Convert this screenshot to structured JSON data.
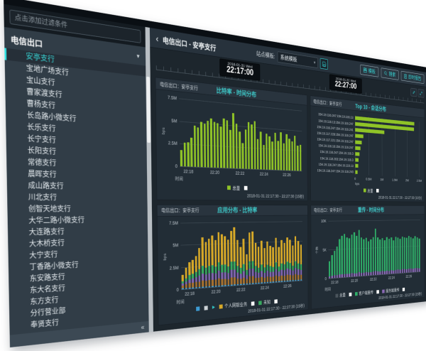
{
  "accent": "#38d2d2",
  "sidebar": {
    "filter_placeholder": "点击添加过滤条件",
    "group": "电信出口",
    "selected_index": 0,
    "items": [
      "安亭支行",
      "宝地广场支行",
      "宝山支行",
      "曹家渡支行",
      "曹杨支行",
      "长岛路小微支行",
      "长乐支行",
      "长宁支行",
      "长阳支行",
      "常德支行",
      "晨晖支行",
      "成山路支行",
      "川北支行",
      "创智天地支行",
      "大华二路小微支行",
      "大连路支行",
      "大木桥支行",
      "大宁支行",
      "丁香路小微支行",
      "东安路支行",
      "东大名支行",
      "东方支行",
      "分行营业部",
      "奉贤支行"
    ],
    "collapse_icon": "«"
  },
  "header": {
    "back": "‹",
    "breadcrumb": "电信出口 - 安亭支行",
    "template_label": "站点模板:",
    "template_value": "系统模板",
    "caret": "▾",
    "buttons": [
      {
        "label": "模板"
      },
      {
        "label": "搜索"
      },
      {
        "label": "即时报告"
      }
    ]
  },
  "timeline": {
    "start_date": "2018-01-31 Wed",
    "start_time": "22:17:00",
    "end_date": "2018-01-31 Wed",
    "end_time": "22:27:00"
  },
  "chart_data": [
    {
      "type": "bar",
      "source": "电信出口：安亭支行",
      "title": "比特率 - 时间分布",
      "ylabel": "bps",
      "xlabel": "时间",
      "yticks": [
        "7.5M",
        "5M",
        "2.5M",
        "0"
      ],
      "ymax": 7.5,
      "xticks": [
        "22:18",
        "22:20",
        "22:22",
        "22:24",
        "22:26"
      ],
      "series": [
        {
          "name": "总量",
          "color": "#8fc327",
          "values": [
            1.8,
            2.6,
            2.7,
            3.2,
            4.6,
            4.4,
            5.1,
            4.9,
            5.3,
            5.6,
            5.2,
            5.1,
            4.7,
            5.7,
            5.5,
            4.4,
            6.4,
            5.2,
            4.3,
            3.0,
            4.6,
            5.5,
            5.3,
            5.7,
            3.6,
            4.5,
            2.9,
            4.3,
            4.0,
            3.4,
            4.5,
            3.5,
            4.6,
            3.3,
            4.4,
            3.9,
            3.6,
            4.3,
            3.1,
            3.2
          ]
        }
      ],
      "legend": [
        {
          "color": "#8fc327",
          "label": "总量"
        },
        {
          "color": "#ffffff",
          "label": ""
        }
      ],
      "footer": "2018-01-31 22:17:30 - 22:27:30 (15秒)"
    },
    {
      "type": "hbar",
      "source": "电信出口：安亭支行",
      "title": "Top 10 - 会话分布",
      "xlabel": "bps",
      "xticks": [
        "0",
        "0.5M",
        "1M",
        "1.5M",
        "2M",
        "2.5M"
      ],
      "xmax": 2.5,
      "color": "#8fc327",
      "labels": [
        "154.19.116.247:154.19.100.13",
        "154.19.116.13:154.19.116.247",
        "154.19.116.247:154.19.116.241",
        "154.19.117.228:154.19.116.247",
        "154.19.117.221:154.19.116.247",
        "154.19.116.16:154.19.116.247",
        "154.19.116.247:154.19.116.3",
        "154.19.118.203:154.19.116.3",
        "154.19.116.247:154.19.115.13",
        "154.19.116.247:154.19.116.243"
      ],
      "values": [
        2.3,
        2.28,
        1.1,
        0.3,
        0.24,
        0.2,
        0.16,
        0.13,
        0.11,
        0.09
      ],
      "legend": [
        {
          "color": "#8fc327",
          "label": "总量"
        },
        {
          "color": "#ffffff",
          "label": ""
        }
      ],
      "footer": "2018-01-31 22:17:30 - 22:27:30 (10分)"
    },
    {
      "type": "bar",
      "source": "电信出口：安亭支行",
      "title": "应用分布 - 比特率",
      "ylabel": "bps",
      "xlabel": "时间",
      "yticks": [
        "7.5M",
        "5M",
        "2.5M",
        "0"
      ],
      "ymax": 7.5,
      "xticks": [
        "22:18",
        "22:20",
        "22:22",
        "22:24",
        "22:26"
      ],
      "series": [
        {
          "name": "",
          "color": "#3d9bd3",
          "values": [
            0.15,
            0.15,
            0.15,
            0.15,
            0.15,
            0.15,
            0.15,
            0.15,
            0.15,
            0.15,
            0.15,
            0.15,
            0.15,
            0.15,
            0.15,
            0.15,
            0.15,
            0.15,
            0.15,
            0.15,
            0.15,
            0.15,
            0.15,
            0.15,
            0.15,
            0.15,
            0.15,
            0.15,
            0.15,
            0.15,
            0.15,
            0.15,
            0.15,
            0.15,
            0.15,
            0.15,
            0.15,
            0.15,
            0.15,
            0.15
          ]
        },
        {
          "name": "",
          "color": "#a5702f",
          "values": [
            0.3,
            0.4,
            0.5,
            0.5,
            0.55,
            0.6,
            0.7,
            0.65,
            0.7,
            0.7,
            0.7,
            0.8,
            0.7,
            0.7,
            0.65,
            0.8,
            0.8,
            0.65,
            0.6,
            0.7,
            0.5,
            0.8,
            0.8,
            0.6,
            0.55,
            0.65,
            0.5,
            0.65,
            0.6,
            0.55,
            0.7,
            0.55,
            0.65,
            0.6,
            0.7,
            0.65,
            0.55,
            0.7,
            0.6,
            0.6
          ]
        },
        {
          "name": "",
          "color": "#7f63ad",
          "values": [
            0.2,
            0.3,
            0.4,
            0.5,
            0.55,
            0.7,
            0.8,
            0.7,
            0.8,
            0.8,
            0.7,
            0.9,
            0.8,
            0.8,
            0.7,
            0.9,
            0.9,
            0.7,
            0.6,
            0.8,
            0.5,
            0.9,
            0.9,
            0.7,
            0.6,
            0.7,
            0.6,
            0.7,
            0.6,
            0.6,
            0.8,
            0.6,
            0.7,
            0.7,
            0.8,
            0.7,
            0.6,
            0.8,
            0.7,
            0.6
          ]
        },
        {
          "name": "未知",
          "color": "#38a95e",
          "values": [
            0.25,
            0.35,
            0.5,
            0.55,
            0.6,
            0.75,
            0.9,
            0.8,
            0.85,
            0.9,
            0.8,
            1.0,
            0.9,
            0.9,
            0.8,
            1.0,
            1.0,
            0.8,
            0.7,
            0.85,
            0.6,
            0.95,
            0.95,
            0.75,
            0.65,
            0.8,
            0.65,
            0.75,
            0.7,
            0.65,
            0.85,
            0.65,
            0.8,
            0.75,
            0.85,
            0.8,
            0.65,
            0.85,
            0.75,
            0.7
          ]
        },
        {
          "name": "个人网银业务",
          "color": "#d7a928",
          "values": [
            0.7,
            1.2,
            1.45,
            1.55,
            1.8,
            2.4,
            3.25,
            2.95,
            3.1,
            3.4,
            3.1,
            3.45,
            3.55,
            3.3,
            3.1,
            3.6,
            4.05,
            3.05,
            2.5,
            3.0,
            1.85,
            3.4,
            3.5,
            2.75,
            2.5,
            2.9,
            2.35,
            2.8,
            2.5,
            2.4,
            3.0,
            2.4,
            2.9,
            2.6,
            3.0,
            2.9,
            2.5,
            3.1,
            2.8,
            2.5
          ]
        }
      ],
      "legend": [
        {
          "color": "#3d9bd3",
          "label": ""
        },
        {
          "color": "#ccd2d6",
          "label": ""
        },
        {
          "type": "arrow",
          "label": "▶"
        },
        {
          "color": "#d7a928",
          "label": "个人网银业务"
        },
        {
          "color": "#ffffff",
          "label": ""
        },
        {
          "color": "#38a95e",
          "label": "未知"
        },
        {
          "color": "#ffffff",
          "label": ""
        }
      ],
      "footer": "2018-01-31 22:17:30 - 22:27:30 (15秒)"
    },
    {
      "type": "bar",
      "source": "电信出口：安亭支行",
      "title": "重传 - 时间分布",
      "ylabel": "个数",
      "xlabel": "时间",
      "yticks": [
        "10K",
        "5K",
        "0"
      ],
      "ymax": 10,
      "xticks": [
        "22:18",
        "22:20",
        "22:22",
        "22:24",
        "22:26"
      ],
      "series": [
        {
          "name": "服务端重传",
          "color": "#8a68b5",
          "values": [
            0.35,
            0.4,
            0.45,
            0.5,
            0.55,
            0.6,
            0.6,
            0.55,
            0.6,
            0.65,
            0.6,
            0.6,
            0.7,
            0.6,
            0.6,
            0.65,
            0.6,
            0.6,
            0.65,
            0.7,
            0.65,
            0.6,
            0.65,
            0.6,
            0.65,
            0.6,
            0.65,
            0.6,
            0.65,
            0.7,
            0.65,
            0.7,
            0.7,
            0.65,
            0.7,
            0.7,
            0.65,
            0.7,
            0.7,
            0.65
          ]
        },
        {
          "name": "客户端重传",
          "color": "#2fae68",
          "values": [
            2.6,
            3.6,
            4.3,
            5.0,
            6.2,
            6.7,
            7.0,
            6.4,
            6.2,
            6.8,
            7.3,
            6.6,
            7.6,
            6.3,
            6.0,
            6.2,
            5.6,
            5.9,
            6.3,
            7.7,
            6.2,
            5.8,
            6.0,
            5.7,
            6.2,
            5.9,
            6.1,
            5.6,
            6.2,
            6.0,
            5.8,
            6.1,
            6.0,
            5.9,
            6.2,
            6.0,
            5.8,
            6.1,
            5.9,
            5.7
          ]
        }
      ],
      "legend": [
        {
          "color": "#4a545c",
          "label": "总量"
        },
        {
          "color": "#ffffff",
          "label": ""
        },
        {
          "color": "#2fae68",
          "label": "客户端重传"
        },
        {
          "color": "#ffffff",
          "label": ""
        },
        {
          "color": "#8a68b5",
          "label": "服务端重传"
        },
        {
          "color": "#ffffff",
          "label": ""
        }
      ],
      "footer": "2018-01-31 22:17:30 - 22:27:30 (15秒)"
    }
  ]
}
